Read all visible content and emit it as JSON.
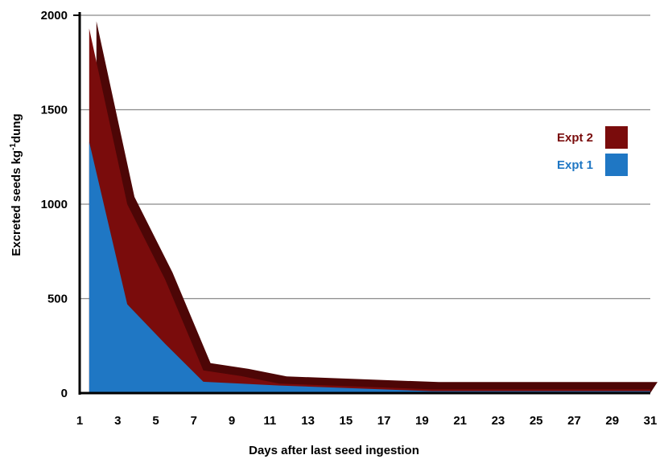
{
  "chart_data": {
    "type": "area",
    "xlabel": "Days after last seed ingestion",
    "ylabel_main": "Excreted seeds kg",
    "ylabel_sup": "-1",
    "ylabel_tail": "dung",
    "xlim": [
      1,
      31
    ],
    "ylim": [
      0,
      2000
    ],
    "x_ticks": [
      1,
      3,
      5,
      7,
      9,
      11,
      13,
      15,
      17,
      19,
      21,
      23,
      25,
      27,
      29,
      31
    ],
    "y_ticks": [
      0,
      500,
      1000,
      1500,
      2000
    ],
    "grid": "horizontal",
    "legend_position": "right",
    "series": [
      {
        "name": "Expt 2",
        "color": "#7a0c0c",
        "side_color": "#4d0606",
        "x": [
          1.5,
          3.5,
          5.5,
          7.5,
          9.5,
          11.5,
          19.5,
          31
        ],
        "y": [
          1930,
          1000,
          600,
          120,
          90,
          50,
          20,
          20
        ]
      },
      {
        "name": "Expt 1",
        "color": "#1f77c4",
        "x": [
          1.5,
          3.5,
          5.5,
          7.5,
          9.5,
          11.5,
          19.5,
          31
        ],
        "y": [
          1330,
          470,
          260,
          60,
          50,
          40,
          10,
          10
        ]
      }
    ]
  }
}
